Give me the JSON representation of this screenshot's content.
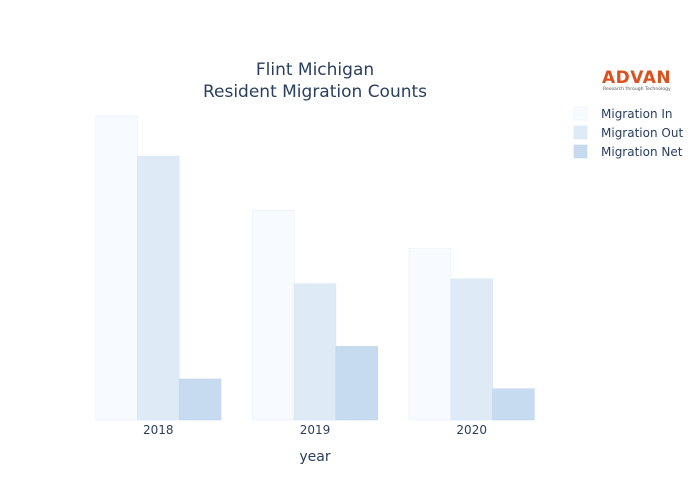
{
  "chart_data": {
    "type": "bar",
    "title_lines": [
      "Flint Michigan",
      "Resident Migration Counts"
    ],
    "xlabel": "year",
    "ylabel": "",
    "categories": [
      "2018",
      "2019",
      "2020"
    ],
    "series": [
      {
        "name": "Migration In",
        "values": [
          10000,
          6900,
          5650
        ],
        "color": "#f7fbff",
        "stroke": "#e4eef8"
      },
      {
        "name": "Migration Out",
        "values": [
          8680,
          4480,
          4640
        ],
        "color": "#deebf7",
        "stroke": "#d3e3f3"
      },
      {
        "name": "Migration Net",
        "values": [
          1350,
          2420,
          1030
        ],
        "color": "#c6dbef",
        "stroke": "#b9d2ea"
      }
    ],
    "ylim": [
      0,
      10000
    ],
    "y_ticks_shown": false,
    "grid": false,
    "legend": "top-right"
  },
  "logo": {
    "name": "ADVAN",
    "tagline": "Research through Technology",
    "color": "#d8531f"
  }
}
